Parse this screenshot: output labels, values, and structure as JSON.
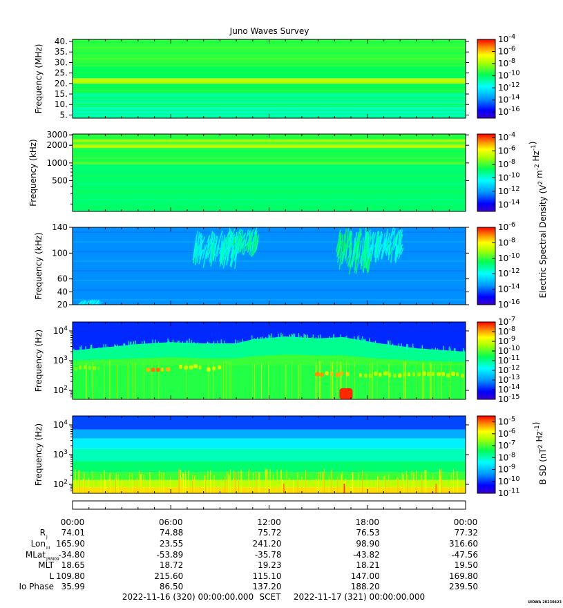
{
  "chart_data": {
    "type": "heatmap",
    "title": "Juno Waves Survey",
    "footer": "UIOWA 20230423",
    "time_axis": {
      "start": "2022-11-16 (320) 00:00:00.000",
      "end": "2022-11-17 (321) 00:00:00.000",
      "middle_label": "SCET",
      "tick_labels": [
        "00:00",
        "06:00",
        "12:00",
        "18:00",
        "00:00"
      ],
      "tick_hours": [
        0,
        6,
        12,
        18,
        24
      ]
    },
    "panels": [
      {
        "ylabel": "Frequency (MHz)",
        "yscale": "linear",
        "ylim": [
          3.5,
          41
        ],
        "yticks": [
          {
            "v": 40,
            "t": "40."
          },
          {
            "v": 35,
            "t": "35."
          },
          {
            "v": 30,
            "t": "30."
          },
          {
            "v": 25,
            "t": "25."
          },
          {
            "v": 20,
            "t": "20."
          },
          {
            "v": 15,
            "t": "15."
          },
          {
            "v": 10,
            "t": "10."
          },
          {
            "v": 5,
            "t": "5."
          }
        ],
        "cbar": {
          "exp_min": -17,
          "exp_max": -4,
          "ticks": [
            -4,
            -6,
            -8,
            -10,
            -12,
            -14,
            -16
          ]
        },
        "bands": [
          {
            "lo": 3.5,
            "hi": 8.5,
            "level": 0.47,
            "stripes": 6
          },
          {
            "lo": 8.5,
            "hi": 10.5,
            "level": 0.52,
            "stripes": 1
          },
          {
            "lo": 10.5,
            "hi": 15.5,
            "level": 0.5,
            "stripes": 3
          },
          {
            "lo": 15.5,
            "hi": 20,
            "level": 0.56,
            "stripes": 2
          },
          {
            "lo": 20,
            "hi": 22.5,
            "level": 0.72,
            "stripes": 0
          },
          {
            "lo": 22.5,
            "hi": 28,
            "level": 0.55,
            "stripes": 3
          },
          {
            "lo": 28,
            "hi": 41,
            "level": 0.59,
            "stripes": 5
          }
        ]
      },
      {
        "ylabel": "Frequency (kHz)",
        "yscale": "log",
        "ylim": [
          150,
          3100
        ],
        "yticks": [
          {
            "v": 3000,
            "t": "3000"
          },
          {
            "v": 2000,
            "t": "2000"
          },
          {
            "v": 1000,
            "t": "1000"
          },
          {
            "v": 500,
            "t": "500"
          }
        ],
        "cbar": {
          "exp_min": -15,
          "exp_max": -3.5,
          "ticks": [
            -4,
            -6,
            -8,
            -10,
            -12,
            -14
          ]
        },
        "bands": [
          {
            "lo": 150,
            "hi": 950,
            "level": 0.53,
            "stripes": 6
          },
          {
            "lo": 950,
            "hi": 1050,
            "level": 0.62,
            "stripes": 0
          },
          {
            "lo": 1050,
            "hi": 1800,
            "level": 0.57,
            "stripes": 2
          },
          {
            "lo": 1800,
            "hi": 2050,
            "level": 0.72,
            "stripes": 0
          },
          {
            "lo": 2050,
            "hi": 2300,
            "level": 0.62,
            "stripes": 0
          },
          {
            "lo": 2300,
            "hi": 2500,
            "level": 0.7,
            "stripes": 0
          },
          {
            "lo": 2500,
            "hi": 3100,
            "level": 0.59,
            "stripes": 1
          }
        ]
      },
      {
        "ylabel": "Frequency (kHz)",
        "yscale": "linear",
        "ylim": [
          20,
          140
        ],
        "yticks": [
          {
            "v": 140,
            "t": "140"
          },
          {
            "v": 100,
            "t": "100"
          },
          {
            "v": 60,
            "t": "60"
          },
          {
            "v": 40,
            "t": "40"
          },
          {
            "v": 20,
            "t": "20"
          }
        ],
        "cbar": {
          "exp_min": -16,
          "exp_max": -6,
          "ticks": [
            -6,
            -8,
            -10,
            -12,
            -14,
            -16
          ]
        },
        "bands": [
          {
            "lo": 20,
            "hi": 140,
            "level": 0.24,
            "stripes": 8
          }
        ],
        "features": [
          {
            "t0": 9.6,
            "t1": 11.4,
            "f0": 90,
            "f1": 140,
            "level": 0.42
          },
          {
            "t0": 7.5,
            "t1": 10.2,
            "f0": 65,
            "f1": 135,
            "level": 0.36
          },
          {
            "t0": 16.3,
            "t1": 18.3,
            "f0": 50,
            "f1": 140,
            "level": 0.44
          },
          {
            "t0": 18.0,
            "t1": 20.2,
            "f0": 75,
            "f1": 140,
            "level": 0.36
          },
          {
            "t0": 0.6,
            "t1": 1.9,
            "f0": 20,
            "f1": 28,
            "level": 0.3
          }
        ]
      },
      {
        "ylabel": "Frequency (Hz)",
        "yscale": "log",
        "ylim": [
          50,
          20000
        ],
        "yticks": [
          {
            "v": 10000,
            "t": "10",
            "sup": "4"
          },
          {
            "v": 1000,
            "t": "10",
            "sup": "3"
          },
          {
            "v": 100,
            "t": "10",
            "sup": "2"
          }
        ],
        "cbar": {
          "exp_min": -15,
          "exp_max": -7,
          "ticks": [
            -7,
            -8,
            -9,
            -10,
            -11,
            -12,
            -13,
            -14,
            -15
          ]
        },
        "profile": [
          {
            "t": 0,
            "upper": 2200,
            "mid": 1000
          },
          {
            "t": 2,
            "upper": 2800,
            "mid": 1100
          },
          {
            "t": 4,
            "upper": 3600,
            "mid": 1200
          },
          {
            "t": 6,
            "upper": 4200,
            "mid": 1300
          },
          {
            "t": 8,
            "upper": 3800,
            "mid": 1200
          },
          {
            "t": 10,
            "upper": 3800,
            "mid": 1200
          },
          {
            "t": 11,
            "upper": 5200,
            "mid": 1400
          },
          {
            "t": 13,
            "upper": 6500,
            "mid": 1600
          },
          {
            "t": 15,
            "upper": 5600,
            "mid": 1500
          },
          {
            "t": 16.5,
            "upper": 6200,
            "mid": 1500
          },
          {
            "t": 18.5,
            "upper": 4000,
            "mid": 1200
          },
          {
            "t": 21,
            "upper": 2600,
            "mid": 1000
          },
          {
            "t": 24,
            "upper": 2000,
            "mid": 900
          }
        ],
        "hot_lines": [
          {
            "t0": 0.1,
            "t1": 1.8,
            "f": 560,
            "level": 0.7
          },
          {
            "t0": 4.5,
            "t1": 6.0,
            "f": 500,
            "level": 0.92
          },
          {
            "t0": 6.5,
            "t1": 8.0,
            "f": 600,
            "level": 0.78
          },
          {
            "t0": 8.2,
            "t1": 9.2,
            "f": 560,
            "level": 0.78
          },
          {
            "t0": 14.8,
            "t1": 17.0,
            "f": 360,
            "level": 0.9
          },
          {
            "t0": 17.5,
            "t1": 24.0,
            "f": 340,
            "level": 0.75
          },
          {
            "t0": 16.3,
            "t1": 17.1,
            "f": 70,
            "level": 0.97
          }
        ]
      },
      {
        "ylabel": "Frequency (Hz)",
        "yscale": "log",
        "ylim": [
          50,
          20000
        ],
        "yticks": [
          {
            "v": 10000,
            "t": "10",
            "sup": "4"
          },
          {
            "v": 1000,
            "t": "10",
            "sup": "3"
          },
          {
            "v": 100,
            "t": "10",
            "sup": "2"
          }
        ],
        "cbar": {
          "exp_min": -11,
          "exp_max": -4.5,
          "ticks": [
            -5,
            -6,
            -7,
            -8,
            -9,
            -10,
            -11
          ]
        },
        "bands": [
          {
            "lo": 50,
            "hi": 80,
            "level": 0.83,
            "stripes": 0
          },
          {
            "lo": 80,
            "hi": 140,
            "level": 0.72,
            "stripes": 0
          },
          {
            "lo": 140,
            "hi": 260,
            "level": 0.6,
            "stripes": 0
          },
          {
            "lo": 260,
            "hi": 600,
            "level": 0.53,
            "stripes": 0
          },
          {
            "lo": 600,
            "hi": 1600,
            "level": 0.46,
            "stripes": 0
          },
          {
            "lo": 1600,
            "hi": 3500,
            "level": 0.38,
            "stripes": 0
          },
          {
            "lo": 3500,
            "hi": 7000,
            "level": 0.28,
            "stripes": 0
          },
          {
            "lo": 7000,
            "hi": 20000,
            "level": 0.17,
            "stripes": 0
          }
        ],
        "spikes": [
          {
            "t": 12.9,
            "level": 0.9
          },
          {
            "t": 16.6,
            "level": 0.95
          },
          {
            "t": 22.2,
            "level": 0.9
          }
        ]
      }
    ],
    "cbar_labels": {
      "electric": "Electric Spectral Density (V^2 m^-2 Hz^-1)",
      "magnetic": "B SD (nT^2 Hz^-1)"
    },
    "ephemeris": {
      "rows": [
        {
          "label": "R",
          "sub": "J",
          "values": [
            "74.01",
            "74.88",
            "75.72",
            "76.53",
            "77.32"
          ]
        },
        {
          "label": "Lon",
          "sub": "III",
          "values": [
            "165.90",
            "23.55",
            "241.20",
            "98.90",
            "316.60"
          ]
        },
        {
          "label": "MLat",
          "sub": "JRM09",
          "values": [
            "-34.80",
            "-53.89",
            "-35.78",
            "-43.82",
            "-47.56"
          ]
        },
        {
          "label": "MLT",
          "sub": "",
          "values": [
            "18.65",
            "18.72",
            "19.23",
            "18.21",
            "19.50"
          ]
        },
        {
          "label": "L",
          "sub": "",
          "values": [
            "109.80",
            "215.60",
            "115.10",
            "147.00",
            "169.80"
          ]
        },
        {
          "label": "Io Phase",
          "sub": "",
          "values": [
            "35.99",
            "86.50",
            "137.20",
            "188.20",
            "239.50"
          ]
        }
      ]
    }
  }
}
